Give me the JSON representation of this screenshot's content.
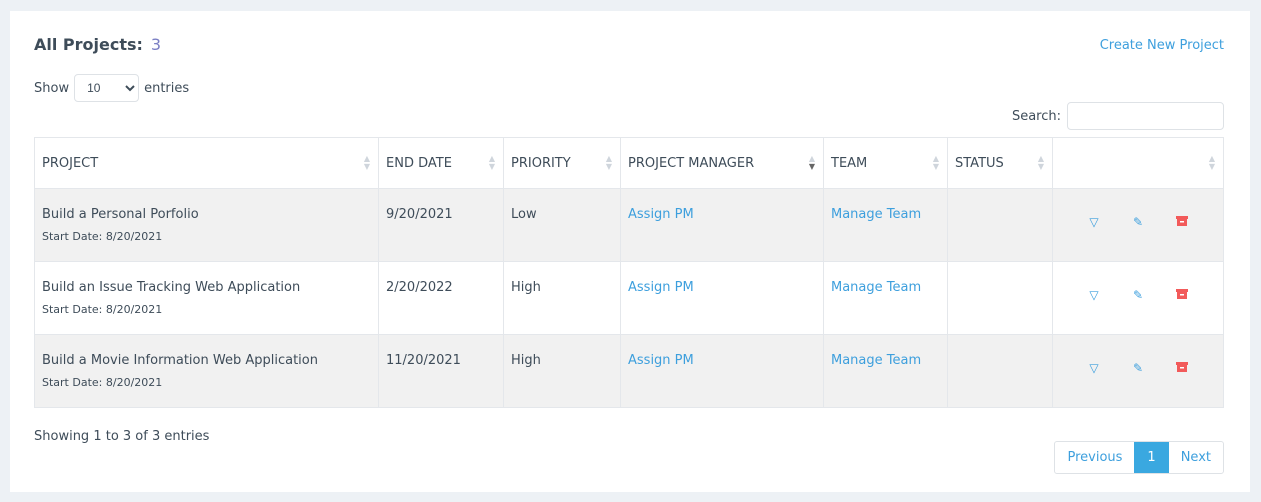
{
  "header": {
    "title": "All Projects:",
    "count": "3",
    "create_link": "Create New Project"
  },
  "length": {
    "show": "Show",
    "value": "10",
    "entries": "entries"
  },
  "search": {
    "label": "Search:",
    "value": ""
  },
  "columns": [
    "PROJECT",
    "END DATE",
    "PRIORITY",
    "PROJECT MANAGER",
    "TEAM",
    "STATUS",
    ""
  ],
  "rows": [
    {
      "project": "Build a Personal Porfolio",
      "start": "Start Date: 8/20/2021",
      "end": "9/20/2021",
      "priority": "Low",
      "pm": "Assign PM",
      "team": "Manage Team",
      "status": ""
    },
    {
      "project": "Build an Issue Tracking Web Application",
      "start": "Start Date: 8/20/2021",
      "end": "2/20/2022",
      "priority": "High",
      "pm": "Assign PM",
      "team": "Manage Team",
      "status": ""
    },
    {
      "project": "Build a Movie Information Web Application",
      "start": "Start Date: 8/20/2021",
      "end": "11/20/2021",
      "priority": "High",
      "pm": "Assign PM",
      "team": "Manage Team",
      "status": ""
    }
  ],
  "footer": {
    "info": "Showing 1 to 3 of 3 entries",
    "previous": "Previous",
    "page": "1",
    "next": "Next"
  },
  "colors": {
    "link": "#3d9fdd",
    "delete": "#f25a5a",
    "active_page": "#3aa8e0"
  }
}
